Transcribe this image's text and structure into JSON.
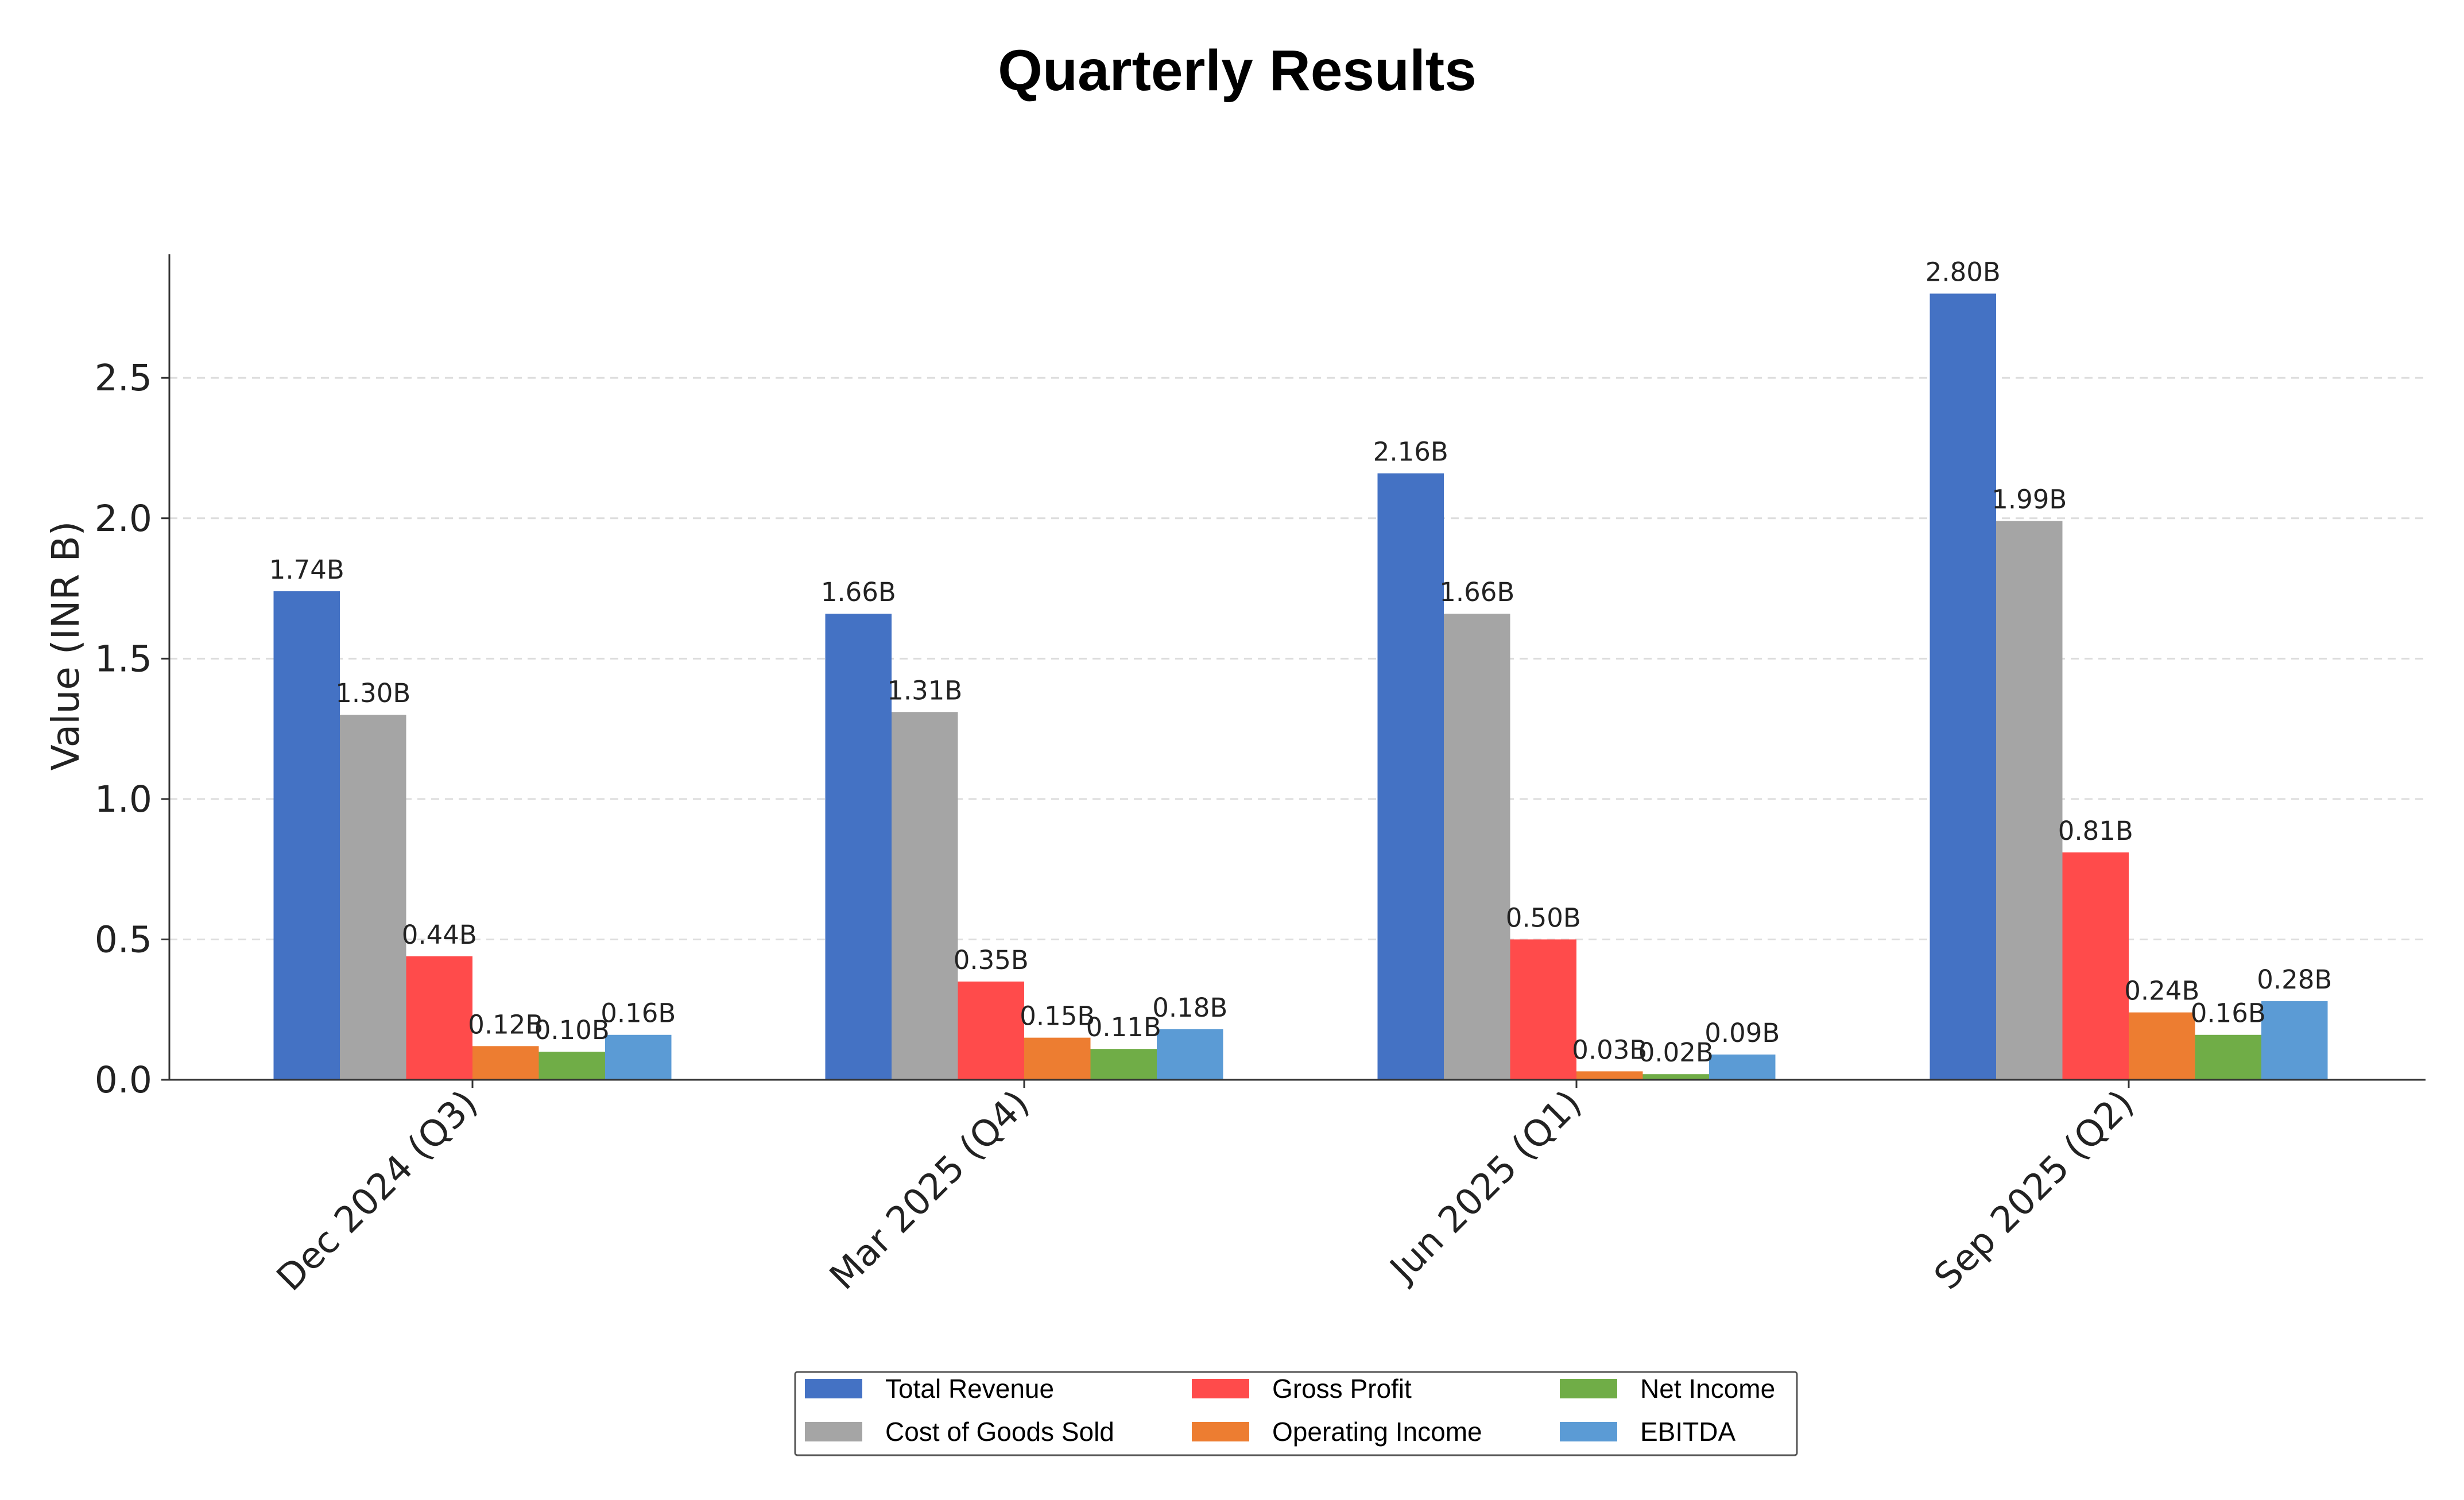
{
  "chart_data": {
    "type": "bar",
    "title": "Quarterly Results",
    "xlabel": "",
    "ylabel": "Value (INR B)",
    "ylim": [
      0,
      2.94
    ],
    "yticks": [
      "0.0",
      "0.5",
      "1.0",
      "1.5",
      "2.0",
      "2.5"
    ],
    "ytick_values": [
      0,
      0.5,
      1.0,
      1.5,
      2.0,
      2.5
    ],
    "grid": "y, dashed",
    "legend_position": "bottom-center",
    "categories": [
      "Dec 2024 (Q3)",
      "Mar 2025 (Q4)",
      "Jun 2025 (Q1)",
      "Sep 2025 (Q2)"
    ],
    "series": [
      {
        "name": "Total Revenue",
        "color": "#4472C4",
        "values": [
          1.74,
          1.66,
          2.16,
          2.8
        ],
        "labels": [
          "1.74B",
          "1.66B",
          "2.16B",
          "2.80B"
        ]
      },
      {
        "name": "Cost of Goods Sold",
        "color": "#A5A5A5",
        "values": [
          1.3,
          1.31,
          1.66,
          1.99
        ],
        "labels": [
          "1.30B",
          "1.31B",
          "1.66B",
          "1.99B"
        ]
      },
      {
        "name": "Gross Profit",
        "color": "#FF4B4B",
        "values": [
          0.44,
          0.35,
          0.5,
          0.81
        ],
        "labels": [
          "0.44B",
          "0.35B",
          "0.50B",
          "0.81B"
        ]
      },
      {
        "name": "Operating Income",
        "color": "#ED7D31",
        "values": [
          0.12,
          0.15,
          0.03,
          0.24
        ],
        "labels": [
          "0.12B",
          "0.15B",
          "0.03B",
          "0.24B"
        ]
      },
      {
        "name": "Net Income",
        "color": "#70AD47",
        "values": [
          0.1,
          0.11,
          0.02,
          0.16
        ],
        "labels": [
          "0.10B",
          "0.11B",
          "0.02B",
          "0.16B"
        ]
      },
      {
        "name": "EBITDA",
        "color": "#5B9BD5",
        "values": [
          0.16,
          0.18,
          0.09,
          0.28
        ],
        "labels": [
          "0.16B",
          "0.18B",
          "0.09B",
          "0.28B"
        ]
      }
    ]
  }
}
